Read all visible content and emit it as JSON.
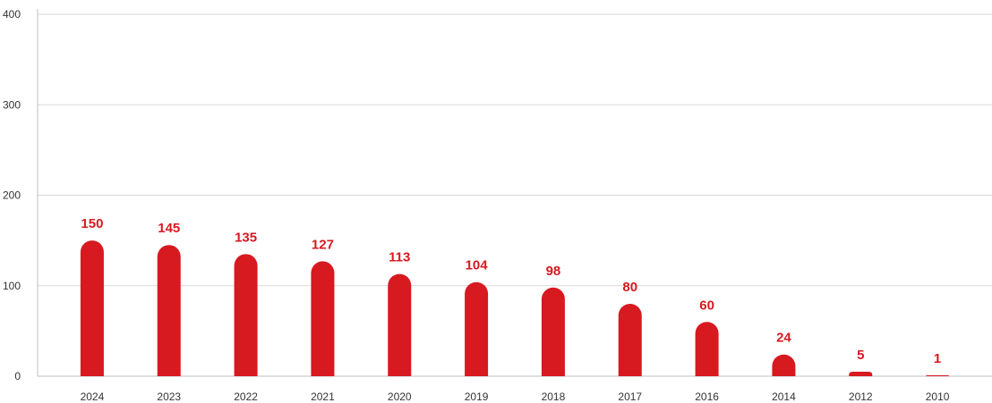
{
  "colors": {
    "bar": "#d71920",
    "label": "#d71920",
    "grid": "#d9d9d9",
    "axis": "#bfbfbf",
    "tick_text": "#333333"
  },
  "chart_data": {
    "type": "bar",
    "title": "",
    "xlabel": "",
    "ylabel": "",
    "categories": [
      "2024",
      "2023",
      "2022",
      "2021",
      "2020",
      "2019",
      "2018",
      "2017",
      "2016",
      "2014",
      "2012",
      "2010"
    ],
    "values": [
      150,
      145,
      135,
      127,
      113,
      104,
      98,
      80,
      60,
      24,
      5,
      1
    ],
    "ylim": [
      0,
      400
    ],
    "yticks": [
      0,
      100,
      200,
      300,
      400
    ],
    "grid": true,
    "legend": "none",
    "data_labels": true
  }
}
